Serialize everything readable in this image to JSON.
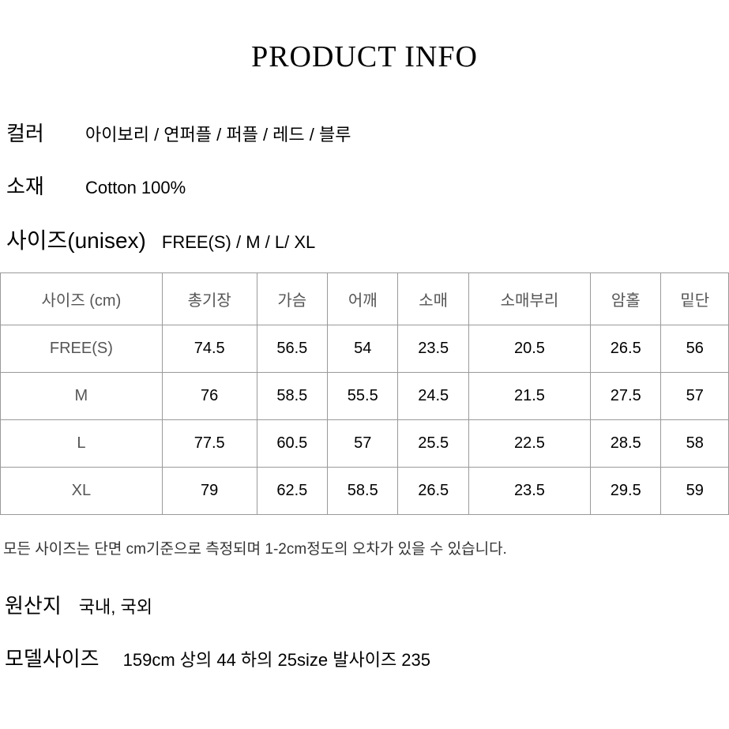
{
  "title": "PRODUCT INFO",
  "color": {
    "label": "컬러",
    "value": "아이보리 / 연퍼플 / 퍼플 / 레드 / 블루"
  },
  "material": {
    "label": "소재",
    "value": "Cotton 100%"
  },
  "size_header": {
    "label": "사이즈(unisex)",
    "value": "FREE(S) / M / L/ XL"
  },
  "table": {
    "columns": [
      "사이즈 (cm)",
      "총기장",
      "가슴",
      "어깨",
      "소매",
      "소매부리",
      "암홀",
      "밑단"
    ],
    "rows": [
      [
        "FREE(S)",
        "74.5",
        "56.5",
        "54",
        "23.5",
        "20.5",
        "26.5",
        "56"
      ],
      [
        "M",
        "76",
        "58.5",
        "55.5",
        "24.5",
        "21.5",
        "27.5",
        "57"
      ],
      [
        "L",
        "77.5",
        "60.5",
        "57",
        "25.5",
        "22.5",
        "28.5",
        "58"
      ],
      [
        "XL",
        "79",
        "62.5",
        "58.5",
        "26.5",
        "23.5",
        "29.5",
        "59"
      ]
    ],
    "border_color": "#9a9a9a",
    "header_color": "#555555",
    "cell_fontsize": 20
  },
  "note": "모든 사이즈는 단면 cm기준으로 측정되며 1-2cm정도의 오차가 있을 수 있습니다.",
  "origin": {
    "label": "원산지",
    "value": "국내, 국외"
  },
  "model": {
    "label": "모델사이즈",
    "value": "159cm  상의 44 하의 25size  발사이즈 235"
  }
}
